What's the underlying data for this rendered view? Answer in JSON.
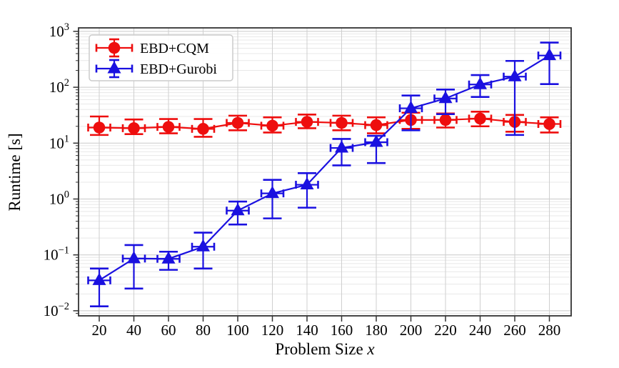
{
  "chart_data": {
    "type": "line",
    "title": "",
    "xlabel": "Problem Size x",
    "xlabel_text": "Problem Size ",
    "xlabel_math": "x",
    "ylabel": "Runtime [s]",
    "ylabel_display": "Runtime [s]",
    "yscale": "log",
    "grid": true,
    "legend_position": "upper left",
    "xlim": [
      8,
      293
    ],
    "ylim": [
      0.008,
      1150
    ],
    "xticks": [
      20,
      40,
      60,
      80,
      100,
      120,
      140,
      160,
      180,
      200,
      220,
      240,
      260,
      280
    ],
    "ytick_exponents": [
      3,
      2,
      1,
      0,
      -1,
      -2
    ],
    "ytick_base": "10",
    "x": [
      20,
      40,
      60,
      80,
      100,
      120,
      140,
      160,
      180,
      200,
      220,
      240,
      260,
      280
    ],
    "series": [
      {
        "name": "EBD+CQM",
        "color": "#ee0e0e",
        "marker": "circle",
        "values": [
          19,
          18.5,
          19.5,
          18,
          23,
          20.5,
          24,
          23,
          21,
          26,
          26,
          27.5,
          24,
          22
        ],
        "err_lo": [
          14,
          14.5,
          15,
          13,
          17,
          15.5,
          18.5,
          17,
          15,
          18,
          19,
          20,
          16,
          15.5
        ],
        "err_hi": [
          30,
          26.5,
          27,
          27,
          31,
          29,
          32.5,
          31,
          29,
          35,
          34,
          36.5,
          32,
          29
        ]
      },
      {
        "name": "EBD+Gurobi",
        "color": "#1a10e0",
        "marker": "triangle",
        "values": [
          0.035,
          0.086,
          0.085,
          0.14,
          0.62,
          1.26,
          1.8,
          8.2,
          10.4,
          42,
          63,
          112,
          155,
          370
        ],
        "err_lo": [
          0.012,
          0.025,
          0.054,
          0.057,
          0.35,
          0.45,
          0.7,
          4,
          4.4,
          17,
          33,
          67,
          14,
          114
        ],
        "err_hi": [
          0.057,
          0.15,
          0.114,
          0.25,
          0.9,
          2.2,
          2.9,
          11.9,
          13.5,
          71,
          91,
          165,
          296,
          630
        ]
      }
    ],
    "colors": {
      "spine": "#333333",
      "major_grid": "#c9c9c9",
      "minor_grid": "#e8e8e8",
      "vertical_grid": "#cfcfcf",
      "legend_border": "#cccccc",
      "background": "#ffffff"
    }
  }
}
